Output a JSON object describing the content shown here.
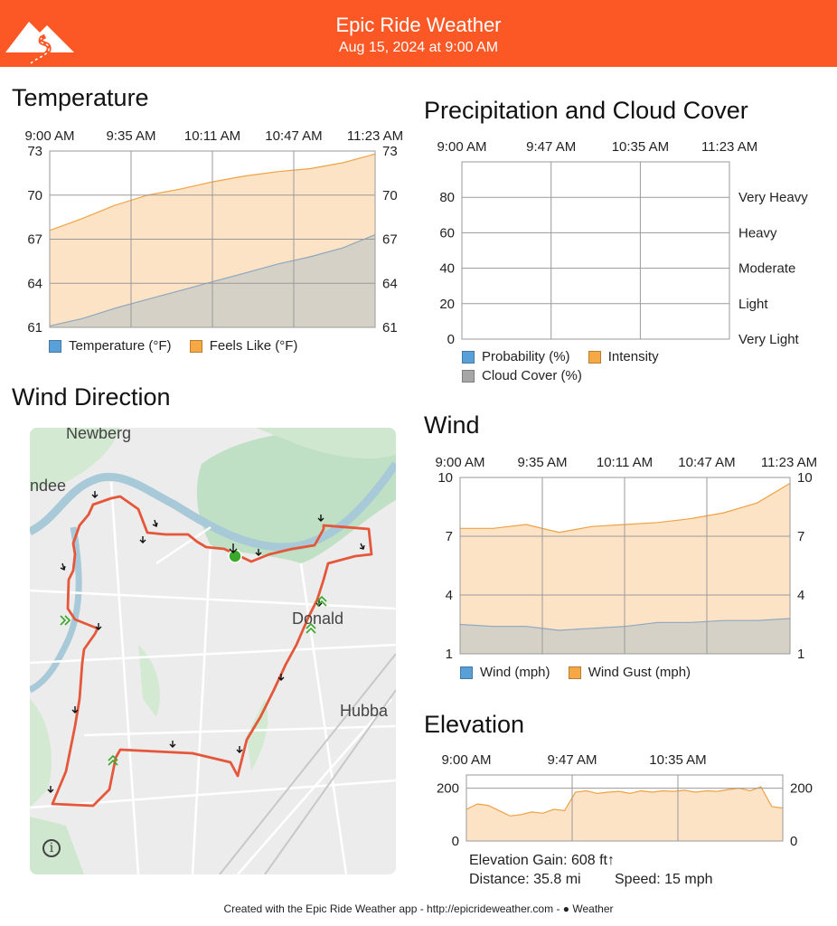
{
  "header": {
    "title": "Epic Ride Weather",
    "date": "Aug 15, 2024 at 9:00 AM",
    "brand_color": "#fb5826",
    "logo_icon": "mountain-road-logo"
  },
  "temperature": {
    "title": "Temperature",
    "chart_data": {
      "type": "area",
      "x_ticks": [
        "9:00 AM",
        "9:35 AM",
        "10:11 AM",
        "10:47 AM",
        "11:23 AM"
      ],
      "y_ticks": [
        73,
        70,
        67,
        64,
        61
      ],
      "ylim": [
        61,
        73
      ],
      "x": [
        0,
        0.1,
        0.2,
        0.3,
        0.4,
        0.5,
        0.6,
        0.7,
        0.8,
        0.9,
        1.0
      ],
      "series": [
        {
          "name": "Temperature (°F)",
          "color": "#5aa0d8",
          "values": [
            61.1,
            61.6,
            62.3,
            62.9,
            63.5,
            64.1,
            64.7,
            65.3,
            65.8,
            66.4,
            67.3
          ]
        },
        {
          "name": "Feels Like (°F)",
          "color": "#f6a844",
          "values": [
            67.6,
            68.4,
            69.3,
            70.0,
            70.4,
            70.9,
            71.3,
            71.6,
            71.8,
            72.2,
            72.8
          ]
        }
      ]
    }
  },
  "precipitation": {
    "title": "Precipitation and Cloud Cover",
    "chart_data": {
      "type": "area",
      "x_ticks": [
        "9:00 AM",
        "9:47 AM",
        "10:35 AM",
        "11:23 AM"
      ],
      "y_ticks": [
        80,
        60,
        40,
        20,
        0
      ],
      "ylim": [
        0,
        100
      ],
      "intensity_labels": [
        "Very Heavy",
        "Heavy",
        "Moderate",
        "Light",
        "Very Light"
      ],
      "series": [
        {
          "name": "Probability (%)",
          "color": "#5aa0d8",
          "values": []
        },
        {
          "name": "Intensity",
          "color": "#f6a844",
          "values": []
        },
        {
          "name": "Cloud Cover (%)",
          "color": "#a6a6a6",
          "values": []
        }
      ]
    }
  },
  "wind_direction": {
    "title": "Wind Direction",
    "map_labels": [
      "Newberg",
      "ndee",
      "Donald",
      "Hubba"
    ],
    "info_icon": "info-icon"
  },
  "wind": {
    "title": "Wind",
    "chart_data": {
      "type": "area",
      "x_ticks": [
        "9:00 AM",
        "9:35 AM",
        "10:11 AM",
        "10:47 AM",
        "11:23 AM"
      ],
      "y_ticks": [
        10,
        7,
        4,
        1
      ],
      "ylim": [
        1,
        10
      ],
      "x": [
        0,
        0.1,
        0.2,
        0.3,
        0.4,
        0.5,
        0.6,
        0.7,
        0.8,
        0.9,
        1.0
      ],
      "series": [
        {
          "name": "Wind (mph)",
          "color": "#5aa0d8",
          "values": [
            2.5,
            2.4,
            2.4,
            2.2,
            2.3,
            2.4,
            2.6,
            2.6,
            2.7,
            2.7,
            2.8
          ]
        },
        {
          "name": "Wind Gust (mph)",
          "color": "#f6a844",
          "values": [
            7.4,
            7.4,
            7.6,
            7.2,
            7.5,
            7.6,
            7.7,
            7.9,
            8.2,
            8.7,
            9.7
          ]
        }
      ]
    }
  },
  "elevation": {
    "title": "Elevation",
    "chart_data": {
      "type": "area",
      "x_ticks": [
        "9:00 AM",
        "9:47 AM",
        "10:35 AM"
      ],
      "y_ticks": [
        200,
        0
      ],
      "ylim": [
        0,
        250
      ],
      "series": [
        {
          "name": "",
          "color": "#f6a844",
          "values": [
            120,
            140,
            135,
            115,
            95,
            100,
            110,
            105,
            120,
            115,
            185,
            190,
            180,
            185,
            188,
            180,
            190,
            185,
            190,
            188,
            192,
            185,
            190,
            188,
            195,
            200,
            190,
            205,
            130,
            125
          ]
        }
      ]
    },
    "stats": {
      "gain": "Elevation Gain: 608 ft↑",
      "distance": "Distance: 35.8 mi",
      "speed": "Speed: 15 mph"
    }
  },
  "footer": {
    "text": "Created with the Epic Ride Weather app - http://epicrideweather.com - ",
    "weather_label": "Weather"
  }
}
